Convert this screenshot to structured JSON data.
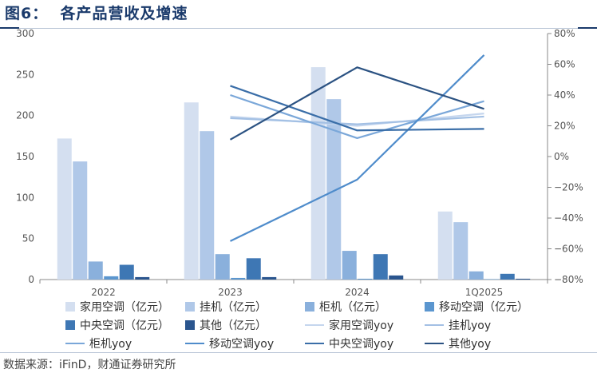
{
  "figure_title": "图6：  各产品营收及增速",
  "source": "数据来源：iFinD，财通证券研究所",
  "chart_data": {
    "type": "bar",
    "categories": [
      "2022",
      "2023",
      "2024",
      "1Q2025"
    ],
    "left_axis": {
      "ticks": [
        0,
        50,
        100,
        150,
        200,
        250,
        300
      ],
      "ylim": [
        0,
        300
      ]
    },
    "right_axis": {
      "ticks": [
        "80%",
        "60%",
        "40%",
        "20%",
        "0%",
        "−20%",
        "−40%",
        "−60%",
        "−80%"
      ],
      "ylim": [
        -80,
        80
      ]
    },
    "bar_series": [
      {
        "name": "家用空调（亿元）",
        "color": "#d4dff0",
        "values": [
          172,
          216,
          259,
          83
        ]
      },
      {
        "name": "挂机（亿元）",
        "color": "#b0c8e8",
        "values": [
          144,
          181,
          220,
          70
        ]
      },
      {
        "name": "柜机（亿元）",
        "color": "#8ab0dc",
        "values": [
          22,
          31,
          35,
          10
        ]
      },
      {
        "name": "移动空调（亿元）",
        "color": "#5b96cf",
        "values": [
          4,
          2,
          1,
          0.5
        ]
      },
      {
        "name": "中央空调（亿元）",
        "color": "#3e77b4",
        "values": [
          18,
          26,
          31,
          7
        ]
      },
      {
        "name": "其他（亿元）",
        "color": "#2a558e",
        "values": [
          3,
          3,
          5,
          1
        ]
      }
    ],
    "line_series": [
      {
        "name": "家用空调yoy",
        "color": "#c5d6ee",
        "x": [
          "2023",
          "2024",
          "1Q2025"
        ],
        "values": [
          26,
          20,
          28
        ]
      },
      {
        "name": "挂机yoy",
        "color": "#a3c0e4",
        "x": [
          "2023",
          "2024",
          "1Q2025"
        ],
        "values": [
          25,
          21,
          26
        ]
      },
      {
        "name": "柜机yoy",
        "color": "#7aa7d9",
        "x": [
          "2023",
          "2024",
          "1Q2025"
        ],
        "values": [
          40,
          12,
          36
        ]
      },
      {
        "name": "移动空调yoy",
        "color": "#4f8ccb",
        "x": [
          "2023",
          "2024",
          "1Q2025"
        ],
        "values": [
          -55,
          -15,
          66
        ]
      },
      {
        "name": "中央空调yoy",
        "color": "#3a6ea8",
        "x": [
          "2023",
          "2024",
          "1Q2025"
        ],
        "values": [
          46,
          17,
          18
        ]
      },
      {
        "name": "其他yoy",
        "color": "#2b5282",
        "x": [
          "2023",
          "2024",
          "1Q2025"
        ],
        "values": [
          11,
          58,
          31
        ]
      }
    ],
    "grid": false,
    "legend_position": "bottom"
  }
}
